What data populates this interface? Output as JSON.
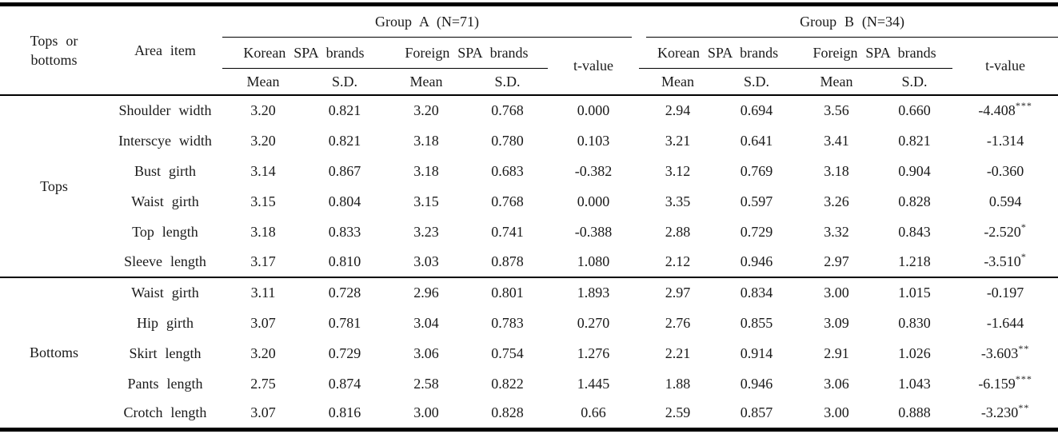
{
  "header": {
    "tops_or_bottoms_line1": "Tops or",
    "tops_or_bottoms_line2": "bottoms",
    "area_item": "Area item",
    "group_a": {
      "label": "Group A (N=71)",
      "korean": "Korean SPA brands",
      "foreign": "Foreign SPA brands",
      "mean": "Mean",
      "sd": "S.D.",
      "tvalue": "t-value"
    },
    "group_b": {
      "label": "Group B (N=34)",
      "korean": "Korean SPA brands",
      "foreign": "Foreign SPA brands",
      "mean": "Mean",
      "sd": "S.D.",
      "tvalue": "t-value"
    }
  },
  "sections": [
    {
      "label": "Tops",
      "rows": [
        {
          "area": "Shoulder width",
          "a": [
            "3.20",
            "0.821",
            "3.20",
            "0.768"
          ],
          "a_t": "0.000",
          "a_sig": "",
          "b": [
            "2.94",
            "0.694",
            "3.56",
            "0.660"
          ],
          "b_t": "-4.408",
          "b_sig": "***"
        },
        {
          "area": "Interscye width",
          "a": [
            "3.20",
            "0.821",
            "3.18",
            "0.780"
          ],
          "a_t": "0.103",
          "a_sig": "",
          "b": [
            "3.21",
            "0.641",
            "3.41",
            "0.821"
          ],
          "b_t": "-1.314",
          "b_sig": ""
        },
        {
          "area": "Bust girth",
          "a": [
            "3.14",
            "0.867",
            "3.18",
            "0.683"
          ],
          "a_t": "-0.382",
          "a_sig": "",
          "b": [
            "3.12",
            "0.769",
            "3.18",
            "0.904"
          ],
          "b_t": "-0.360",
          "b_sig": ""
        },
        {
          "area": "Waist girth",
          "a": [
            "3.15",
            "0.804",
            "3.15",
            "0.768"
          ],
          "a_t": "0.000",
          "a_sig": "",
          "b": [
            "3.35",
            "0.597",
            "3.26",
            "0.828"
          ],
          "b_t": "0.594",
          "b_sig": ""
        },
        {
          "area": "Top length",
          "a": [
            "3.18",
            "0.833",
            "3.23",
            "0.741"
          ],
          "a_t": "-0.388",
          "a_sig": "",
          "b": [
            "2.88",
            "0.729",
            "3.32",
            "0.843"
          ],
          "b_t": "-2.520",
          "b_sig": "*"
        },
        {
          "area": "Sleeve length",
          "a": [
            "3.17",
            "0.810",
            "3.03",
            "0.878"
          ],
          "a_t": "1.080",
          "a_sig": "",
          "b": [
            "2.12",
            "0.946",
            "2.97",
            "1.218"
          ],
          "b_t": "-3.510",
          "b_sig": "*"
        }
      ]
    },
    {
      "label": "Bottoms",
      "rows": [
        {
          "area": "Waist girth",
          "a": [
            "3.11",
            "0.728",
            "2.96",
            "0.801"
          ],
          "a_t": "1.893",
          "a_sig": "",
          "b": [
            "2.97",
            "0.834",
            "3.00",
            "1.015"
          ],
          "b_t": "-0.197",
          "b_sig": ""
        },
        {
          "area": "Hip girth",
          "a": [
            "3.07",
            "0.781",
            "3.04",
            "0.783"
          ],
          "a_t": "0.270",
          "a_sig": "",
          "b": [
            "2.76",
            "0.855",
            "3.09",
            "0.830"
          ],
          "b_t": "-1.644",
          "b_sig": ""
        },
        {
          "area": "Skirt length",
          "a": [
            "3.20",
            "0.729",
            "3.06",
            "0.754"
          ],
          "a_t": "1.276",
          "a_sig": "",
          "b": [
            "2.21",
            "0.914",
            "2.91",
            "1.026"
          ],
          "b_t": "-3.603",
          "b_sig": "**"
        },
        {
          "area": "Pants length",
          "a": [
            "2.75",
            "0.874",
            "2.58",
            "0.822"
          ],
          "a_t": "1.445",
          "a_sig": "",
          "b": [
            "1.88",
            "0.946",
            "3.06",
            "1.043"
          ],
          "b_t": "-6.159",
          "b_sig": "***"
        },
        {
          "area": "Crotch length",
          "a": [
            "3.07",
            "0.816",
            "3.00",
            "0.828"
          ],
          "a_t": "0.66",
          "a_sig": "",
          "b": [
            "2.59",
            "0.857",
            "3.00",
            "0.888"
          ],
          "b_t": "-3.230",
          "b_sig": "**"
        }
      ]
    }
  ],
  "colors": {
    "text": "#1a1a1a",
    "rule": "#000000",
    "background": "#ffffff"
  }
}
